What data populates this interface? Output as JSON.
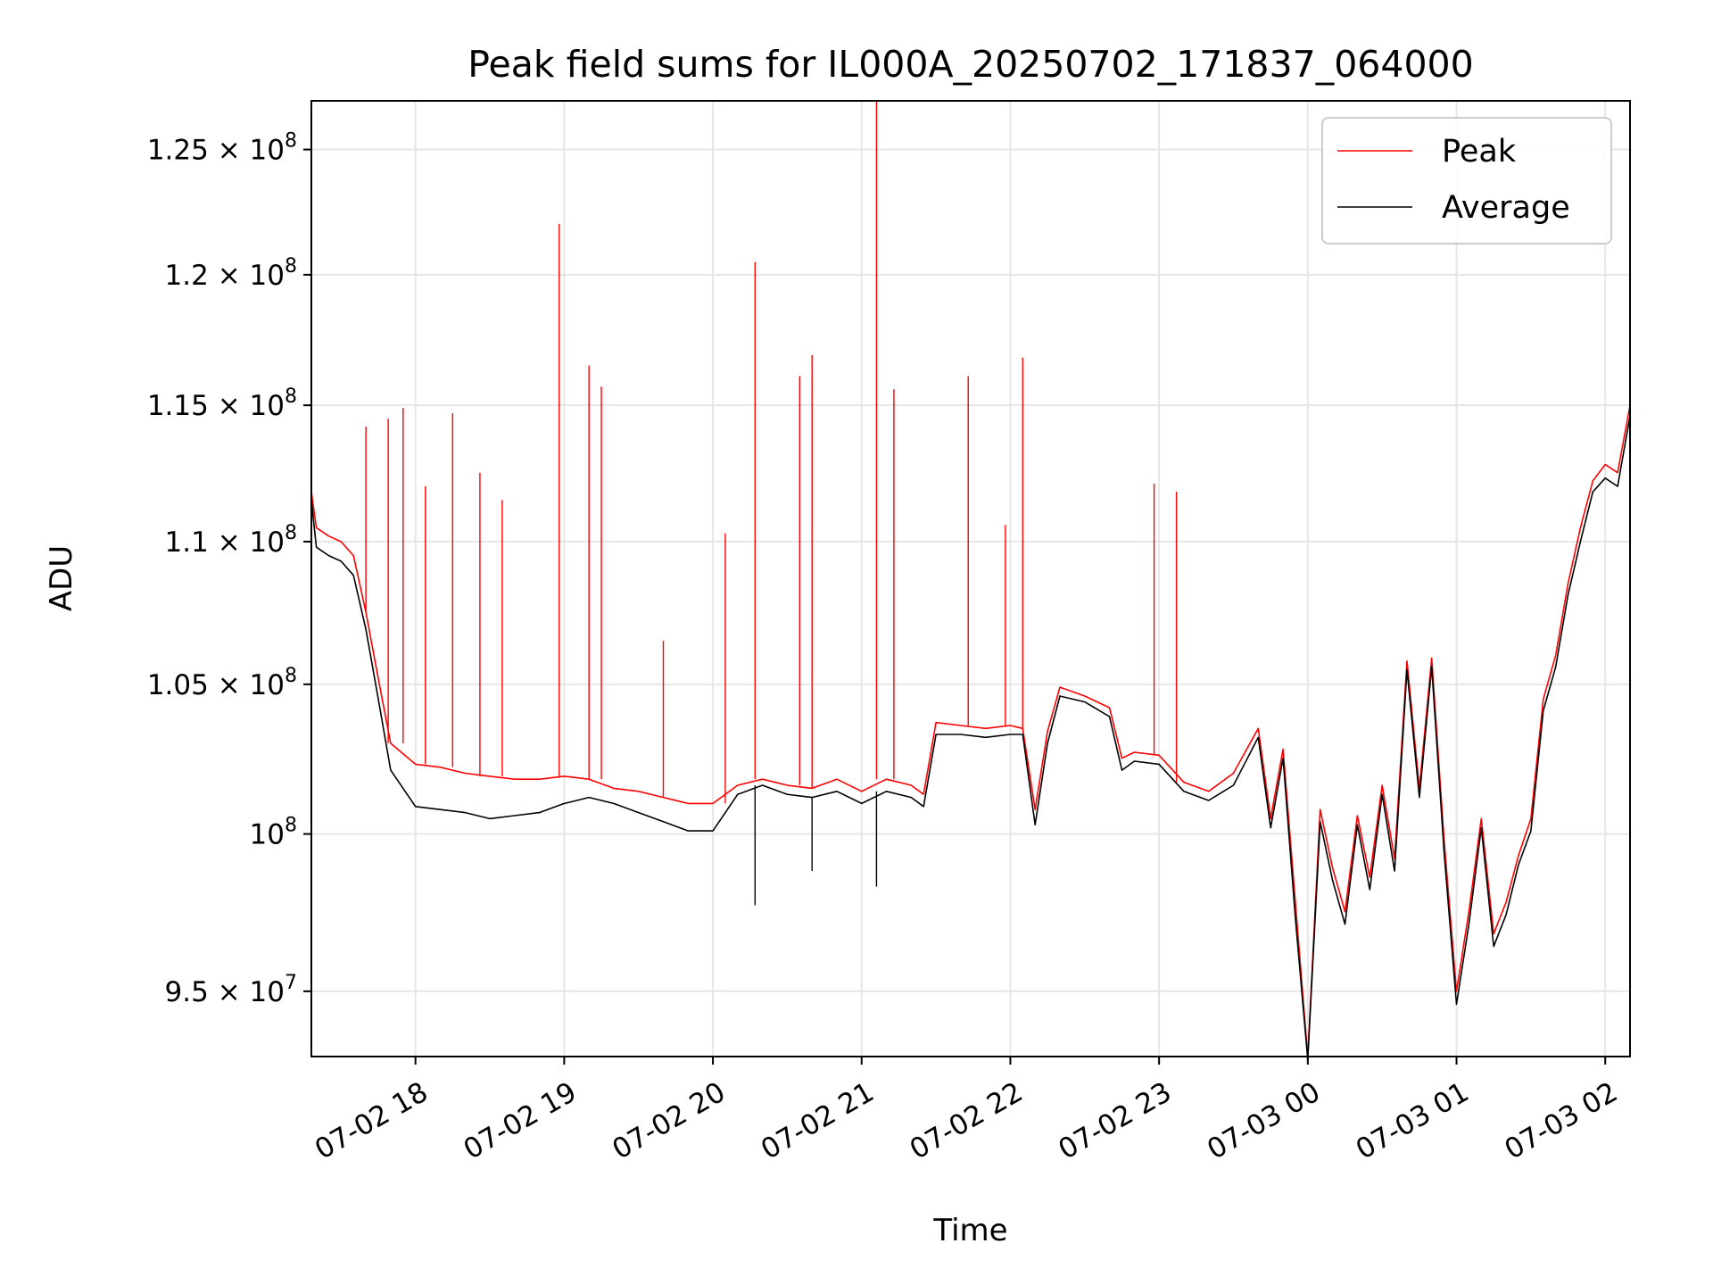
{
  "chart_data": {
    "type": "line",
    "title": "Peak field sums for IL000A_20250702_171837_064000",
    "xlabel": "Time",
    "ylabel": "ADU",
    "x_ticks": [
      "07-02 18",
      "07-02 19",
      "07-02 20",
      "07-02 21",
      "07-02 22",
      "07-02 23",
      "07-03 00",
      "07-03 01",
      "07-03 02"
    ],
    "y_ticks": [
      {
        "value": 95000000,
        "mantissa": "9.5",
        "exp": "7"
      },
      {
        "value": 100000000,
        "mantissa": "",
        "exp": "8"
      },
      {
        "value": 105000000,
        "mantissa": "1.05",
        "exp": "8"
      },
      {
        "value": 110000000,
        "mantissa": "1.1",
        "exp": "8"
      },
      {
        "value": 115000000,
        "mantissa": "1.15",
        "exp": "8"
      },
      {
        "value": 120000000,
        "mantissa": "1.2",
        "exp": "8"
      },
      {
        "value": 125000000,
        "mantissa": "1.25",
        "exp": "8"
      }
    ],
    "xlim": [
      "2025-07-02 17:18",
      "2025-07-03 02:10"
    ],
    "ylim": [
      93000000,
      127000000
    ],
    "y_scale": "log",
    "grid": true,
    "legend": "top-right",
    "series": [
      {
        "name": "Peak",
        "color": "#ff0000",
        "x": [
          "2025-07-02 17:18",
          "2025-07-02 17:20",
          "2025-07-02 17:25",
          "2025-07-02 17:30",
          "2025-07-02 17:35",
          "2025-07-02 17:40",
          "2025-07-02 17:45",
          "2025-07-02 17:50",
          "2025-07-02 18:00",
          "2025-07-02 18:10",
          "2025-07-02 18:20",
          "2025-07-02 18:30",
          "2025-07-02 18:40",
          "2025-07-02 18:50",
          "2025-07-02 19:00",
          "2025-07-02 19:10",
          "2025-07-02 19:20",
          "2025-07-02 19:30",
          "2025-07-02 19:40",
          "2025-07-02 19:50",
          "2025-07-02 20:00",
          "2025-07-02 20:10",
          "2025-07-02 20:20",
          "2025-07-02 20:30",
          "2025-07-02 20:40",
          "2025-07-02 20:50",
          "2025-07-02 21:00",
          "2025-07-02 21:10",
          "2025-07-02 21:20",
          "2025-07-02 21:25",
          "2025-07-02 21:30",
          "2025-07-02 21:40",
          "2025-07-02 21:50",
          "2025-07-02 22:00",
          "2025-07-02 22:05",
          "2025-07-02 22:10",
          "2025-07-02 22:15",
          "2025-07-02 22:20",
          "2025-07-02 22:30",
          "2025-07-02 22:40",
          "2025-07-02 22:45",
          "2025-07-02 22:50",
          "2025-07-02 23:00",
          "2025-07-02 23:10",
          "2025-07-02 23:20",
          "2025-07-02 23:30",
          "2025-07-02 23:40",
          "2025-07-02 23:45",
          "2025-07-02 23:50",
          "2025-07-02 23:55",
          "2025-07-03 00:00",
          "2025-07-03 00:05",
          "2025-07-03 00:10",
          "2025-07-03 00:15",
          "2025-07-03 00:20",
          "2025-07-03 00:25",
          "2025-07-03 00:30",
          "2025-07-03 00:35",
          "2025-07-03 00:40",
          "2025-07-03 00:45",
          "2025-07-03 00:50",
          "2025-07-03 00:55",
          "2025-07-03 01:00",
          "2025-07-03 01:05",
          "2025-07-03 01:10",
          "2025-07-03 01:15",
          "2025-07-03 01:20",
          "2025-07-03 01:25",
          "2025-07-03 01:30",
          "2025-07-03 01:35",
          "2025-07-03 01:40",
          "2025-07-03 01:45",
          "2025-07-03 01:50",
          "2025-07-03 01:55",
          "2025-07-03 02:00",
          "2025-07-03 02:05",
          "2025-07-03 02:10"
        ],
        "y": [
          111800000,
          110500000,
          110200000,
          110000000,
          109500000,
          107500000,
          105200000,
          103000000,
          102300000,
          102200000,
          102000000,
          101900000,
          101800000,
          101800000,
          101900000,
          101800000,
          101500000,
          101400000,
          101200000,
          101000000,
          101000000,
          101600000,
          101800000,
          101600000,
          101500000,
          101800000,
          101400000,
          101800000,
          101600000,
          101300000,
          103700000,
          103600000,
          103500000,
          103600000,
          103500000,
          100800000,
          103400000,
          104900000,
          104600000,
          104200000,
          102500000,
          102700000,
          102600000,
          101700000,
          101400000,
          102000000,
          103500000,
          100500000,
          102800000,
          97800000,
          93000000,
          100800000,
          98900000,
          97500000,
          100600000,
          98600000,
          101600000,
          99200000,
          105800000,
          101500000,
          105900000,
          99800000,
          95000000,
          97500000,
          100500000,
          96800000,
          97800000,
          99300000,
          100500000,
          104500000,
          106000000,
          108500000,
          110500000,
          112200000,
          112800000,
          112500000,
          115000000
        ],
        "spikes": [
          {
            "x": "2025-07-02 17:40",
            "y": 114200000
          },
          {
            "x": "2025-07-02 17:49",
            "y": 114500000
          },
          {
            "x": "2025-07-02 17:55",
            "y": 114900000
          },
          {
            "x": "2025-07-02 18:04",
            "y": 112000000
          },
          {
            "x": "2025-07-02 18:15",
            "y": 114700000
          },
          {
            "x": "2025-07-02 18:26",
            "y": 112500000
          },
          {
            "x": "2025-07-02 18:35",
            "y": 111500000
          },
          {
            "x": "2025-07-02 18:58",
            "y": 122000000
          },
          {
            "x": "2025-07-02 19:10",
            "y": 116500000
          },
          {
            "x": "2025-07-02 19:15",
            "y": 115700000
          },
          {
            "x": "2025-07-02 19:40",
            "y": 106500000
          },
          {
            "x": "2025-07-02 20:05",
            "y": 110300000
          },
          {
            "x": "2025-07-02 20:17",
            "y": 120500000
          },
          {
            "x": "2025-07-02 20:35",
            "y": 116100000
          },
          {
            "x": "2025-07-02 20:40",
            "y": 116900000
          },
          {
            "x": "2025-07-02 21:06",
            "y": 127000000
          },
          {
            "x": "2025-07-02 21:13",
            "y": 115600000
          },
          {
            "x": "2025-07-02 21:43",
            "y": 116100000
          },
          {
            "x": "2025-07-02 21:58",
            "y": 110600000
          },
          {
            "x": "2025-07-02 22:05",
            "y": 116800000
          },
          {
            "x": "2025-07-02 22:58",
            "y": 112100000
          },
          {
            "x": "2025-07-02 23:07",
            "y": 111800000
          }
        ]
      },
      {
        "name": "Average",
        "color": "#000000",
        "x": [
          "2025-07-02 17:18",
          "2025-07-02 17:20",
          "2025-07-02 17:25",
          "2025-07-02 17:30",
          "2025-07-02 17:35",
          "2025-07-02 17:40",
          "2025-07-02 17:45",
          "2025-07-02 17:50",
          "2025-07-02 18:00",
          "2025-07-02 18:10",
          "2025-07-02 18:20",
          "2025-07-02 18:30",
          "2025-07-02 18:40",
          "2025-07-02 18:50",
          "2025-07-02 19:00",
          "2025-07-02 19:10",
          "2025-07-02 19:20",
          "2025-07-02 19:30",
          "2025-07-02 19:40",
          "2025-07-02 19:50",
          "2025-07-02 20:00",
          "2025-07-02 20:10",
          "2025-07-02 20:20",
          "2025-07-02 20:30",
          "2025-07-02 20:40",
          "2025-07-02 20:50",
          "2025-07-02 21:00",
          "2025-07-02 21:10",
          "2025-07-02 21:20",
          "2025-07-02 21:25",
          "2025-07-02 21:30",
          "2025-07-02 21:40",
          "2025-07-02 21:50",
          "2025-07-02 22:00",
          "2025-07-02 22:05",
          "2025-07-02 22:10",
          "2025-07-02 22:15",
          "2025-07-02 22:20",
          "2025-07-02 22:30",
          "2025-07-02 22:40",
          "2025-07-02 22:45",
          "2025-07-02 22:50",
          "2025-07-02 23:00",
          "2025-07-02 23:10",
          "2025-07-02 23:20",
          "2025-07-02 23:30",
          "2025-07-02 23:40",
          "2025-07-02 23:45",
          "2025-07-02 23:50",
          "2025-07-02 23:55",
          "2025-07-03 00:00",
          "2025-07-03 00:05",
          "2025-07-03 00:10",
          "2025-07-03 00:15",
          "2025-07-03 00:20",
          "2025-07-03 00:25",
          "2025-07-03 00:30",
          "2025-07-03 00:35",
          "2025-07-03 00:40",
          "2025-07-03 00:45",
          "2025-07-03 00:50",
          "2025-07-03 00:55",
          "2025-07-03 01:00",
          "2025-07-03 01:05",
          "2025-07-03 01:10",
          "2025-07-03 01:15",
          "2025-07-03 01:20",
          "2025-07-03 01:25",
          "2025-07-03 01:30",
          "2025-07-03 01:35",
          "2025-07-03 01:40",
          "2025-07-03 01:45",
          "2025-07-03 01:50",
          "2025-07-03 01:55",
          "2025-07-03 02:00",
          "2025-07-03 02:05",
          "2025-07-03 02:10"
        ],
        "y": [
          111500000,
          109800000,
          109500000,
          109300000,
          108800000,
          106900000,
          104500000,
          102100000,
          100900000,
          100800000,
          100700000,
          100500000,
          100600000,
          100700000,
          101000000,
          101200000,
          101000000,
          100700000,
          100400000,
          100100000,
          100100000,
          101300000,
          101600000,
          101300000,
          101200000,
          101400000,
          101000000,
          101400000,
          101200000,
          100900000,
          103300000,
          103300000,
          103200000,
          103300000,
          103300000,
          100300000,
          103000000,
          104600000,
          104400000,
          103900000,
          102100000,
          102400000,
          102300000,
          101400000,
          101100000,
          101600000,
          103200000,
          100200000,
          102500000,
          97300000,
          92900000,
          100400000,
          98500000,
          97100000,
          100300000,
          98200000,
          101300000,
          98800000,
          105500000,
          101200000,
          105600000,
          99400000,
          94600000,
          97100000,
          100200000,
          96400000,
          97400000,
          99000000,
          100100000,
          104100000,
          105600000,
          108100000,
          110000000,
          111800000,
          112300000,
          112000000,
          114600000
        ],
        "spikes": [
          {
            "x": "2025-07-02 20:17",
            "y": 97700000
          },
          {
            "x": "2025-07-02 20:40",
            "y": 98800000
          },
          {
            "x": "2025-07-02 21:06",
            "y": 98300000
          }
        ]
      }
    ]
  }
}
